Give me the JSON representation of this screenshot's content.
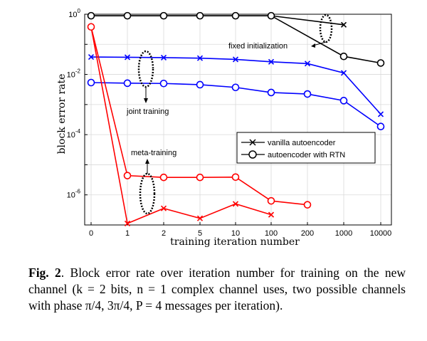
{
  "chart_data": {
    "type": "line",
    "title": "",
    "xlabel": "training iteration number",
    "ylabel": "block error rate",
    "y_scale": "log",
    "ylim_exponent": [
      -7,
      0
    ],
    "categories": [
      "0",
      "1",
      "2",
      "5",
      "10",
      "100",
      "200",
      "1000",
      "10000"
    ],
    "y_tick_labels": [
      {
        "base": "10",
        "exp": "0",
        "value_exponent": 0
      },
      {
        "base": "10",
        "exp": "-2",
        "value_exponent": -2
      },
      {
        "base": "10",
        "exp": "-4",
        "value_exponent": -4
      },
      {
        "base": "10",
        "exp": "-6",
        "value_exponent": -6
      }
    ],
    "grid": true,
    "series": [
      {
        "name": "fixed initialization - vanilla autoencoder",
        "group": "fixed",
        "color": "#000000",
        "marker": "x",
        "x_index": [
          0,
          1,
          2,
          3,
          4,
          5,
          7
        ],
        "log10_values": [
          -0.05,
          -0.05,
          -0.05,
          -0.05,
          -0.05,
          -0.05,
          -0.35
        ]
      },
      {
        "name": "fixed initialization - autoencoder with RTN",
        "group": "fixed",
        "color": "#000000",
        "marker": "o",
        "x_index": [
          0,
          1,
          2,
          3,
          4,
          5,
          7,
          8
        ],
        "log10_values": [
          -0.05,
          -0.05,
          -0.05,
          -0.05,
          -0.05,
          -0.05,
          -1.4,
          -1.62
        ]
      },
      {
        "name": "joint training - vanilla autoencoder",
        "group": "joint",
        "color": "#0000ff",
        "marker": "x",
        "x_index": [
          0,
          1,
          2,
          3,
          4,
          5,
          6,
          7,
          8
        ],
        "log10_values": [
          -1.42,
          -1.43,
          -1.44,
          -1.46,
          -1.5,
          -1.58,
          -1.64,
          -1.95,
          -3.32
        ]
      },
      {
        "name": "joint training - autoencoder with RTN",
        "group": "joint",
        "color": "#0000ff",
        "marker": "o",
        "x_index": [
          0,
          1,
          2,
          3,
          4,
          5,
          6,
          7,
          8
        ],
        "log10_values": [
          -2.27,
          -2.29,
          -2.3,
          -2.34,
          -2.43,
          -2.6,
          -2.65,
          -2.87,
          -3.73
        ]
      },
      {
        "name": "meta-training - vanilla autoencoder",
        "group": "meta",
        "color": "#ff0000",
        "marker": "x",
        "x_index": [
          0,
          1,
          2,
          3,
          4,
          5
        ],
        "log10_values": [
          -0.42,
          -6.95,
          -6.45,
          -6.78,
          -6.3,
          -6.66
        ]
      },
      {
        "name": "meta-training - autoencoder with RTN",
        "group": "meta",
        "color": "#ff0000",
        "marker": "o",
        "x_index": [
          0,
          1,
          2,
          3,
          4,
          5,
          6
        ],
        "log10_values": [
          -0.42,
          -5.36,
          -5.42,
          -5.42,
          -5.41,
          -6.2,
          -6.33
        ]
      }
    ],
    "annotations": {
      "fixed": "fixed initialization",
      "joint": "joint training",
      "meta": "meta-training"
    },
    "legend": {
      "placement": "lower-right",
      "entries": [
        {
          "label": "vanilla autoencoder",
          "marker": "x"
        },
        {
          "label": "autoencoder with RTN",
          "marker": "o"
        }
      ]
    }
  },
  "caption": {
    "label": "Fig. 2",
    "text": ". Block error rate over iteration number for training on the new channel (k = 2 bits, n = 1 complex channel uses, two possible channels with phase π/4, 3π/4, P = 4 messages per iteration)."
  }
}
